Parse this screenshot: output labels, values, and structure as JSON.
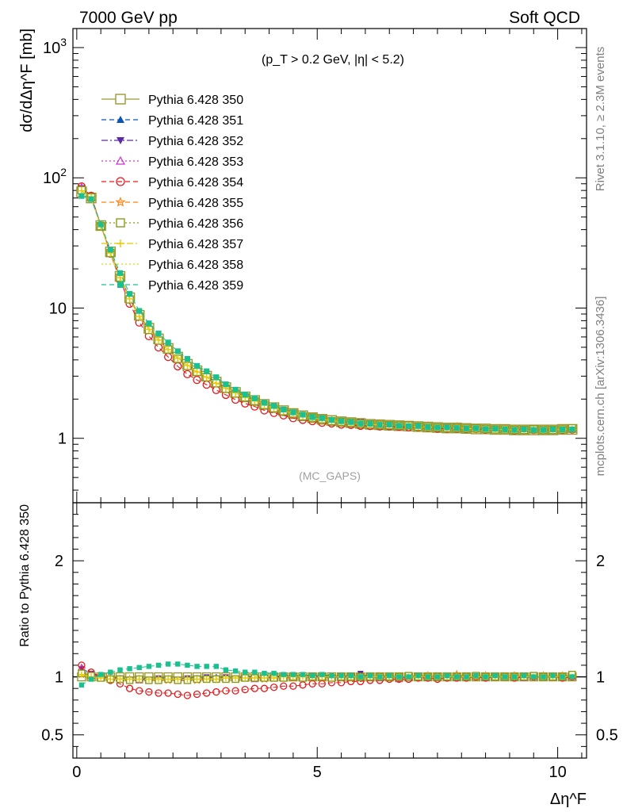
{
  "header": {
    "left_title": "7000 GeV pp",
    "right_title": "Soft QCD",
    "cut_label": "(p_T > 0.2 GeV, |η| < 5.2)",
    "watermark": "(MC_GAPS)",
    "side_note_top": "Rivet 3.1.10, ≥ 2.3M events",
    "side_note_bottom": "mcplots.cern.ch [arXiv:1306.3436]"
  },
  "chart_data": [
    {
      "type": "scatter",
      "name": "main",
      "ylabel": "dσ/dΔη^F [mb]",
      "yscale": "log",
      "xlim": [
        -0.08,
        10.6
      ],
      "ylim": [
        0.32,
        1400
      ],
      "y_ticks": [
        1,
        10,
        100,
        1000
      ],
      "y_tick_labels": [
        "1",
        "10",
        "10^2",
        "10^3"
      ],
      "x": [
        0.1,
        0.3,
        0.5,
        0.7,
        0.9,
        1.1,
        1.3,
        1.5,
        1.7,
        1.9,
        2.1,
        2.3,
        2.5,
        2.7,
        2.9,
        3.1,
        3.3,
        3.5,
        3.7,
        3.9,
        4.1,
        4.3,
        4.5,
        4.7,
        4.9,
        5.1,
        5.3,
        5.5,
        5.7,
        5.9,
        6.1,
        6.3,
        6.5,
        6.7,
        6.9,
        7.1,
        7.3,
        7.5,
        7.7,
        7.9,
        8.1,
        8.3,
        8.5,
        8.7,
        8.9,
        9.1,
        9.3,
        9.5,
        9.7,
        9.9,
        10.1,
        10.3
      ],
      "reference_values": [
        78,
        70,
        43,
        27,
        17.5,
        12,
        8.8,
        7.0,
        5.8,
        4.9,
        4.2,
        3.7,
        3.3,
        3.0,
        2.7,
        2.45,
        2.25,
        2.08,
        1.95,
        1.82,
        1.72,
        1.63,
        1.55,
        1.49,
        1.44,
        1.4,
        1.37,
        1.34,
        1.32,
        1.3,
        1.28,
        1.27,
        1.26,
        1.25,
        1.24,
        1.23,
        1.22,
        1.21,
        1.2,
        1.2,
        1.19,
        1.18,
        1.18,
        1.17,
        1.17,
        1.16,
        1.16,
        1.16,
        1.16,
        1.16,
        1.17,
        1.17
      ],
      "legend_position": "top-left",
      "series": [
        {
          "name": "Pythia 6.428 350",
          "color": "#999933",
          "marker": "square-open",
          "line": "solid"
        },
        {
          "name": "Pythia 6.428 351",
          "color": "#0b55b5",
          "marker": "triangle-up",
          "line": "dashed"
        },
        {
          "name": "Pythia 6.428 352",
          "color": "#5b2aa6",
          "marker": "triangle-down",
          "line": "dashdot"
        },
        {
          "name": "Pythia 6.428 353",
          "color": "#cc33cc",
          "marker": "triangle-up-open",
          "line": "dotted"
        },
        {
          "name": "Pythia 6.428 354",
          "color": "#e31a1c",
          "marker": "circle-open",
          "line": "dashed"
        },
        {
          "name": "Pythia 6.428 355",
          "color": "#ff7f0e",
          "marker": "star-open",
          "line": "dashed"
        },
        {
          "name": "Pythia 6.428 356",
          "color": "#8c9a17",
          "marker": "square-open",
          "line": "dotted"
        },
        {
          "name": "Pythia 6.428 357",
          "color": "#e8c800",
          "marker": "plus",
          "line": "dashdot"
        },
        {
          "name": "Pythia 6.428 358",
          "color": "#d6d61a",
          "marker": "none",
          "line": "dotted"
        },
        {
          "name": "Pythia 6.428 359",
          "color": "#1cbf8f",
          "marker": "square",
          "line": "dashed"
        }
      ]
    },
    {
      "type": "scatter",
      "name": "ratio",
      "xlabel": "Δη^F",
      "ylabel": "Ratio to Pythia 6.428 350",
      "xlim": [
        -0.08,
        10.6
      ],
      "ylim": [
        0.3,
        2.5
      ],
      "x_ticks": [
        0,
        5,
        10
      ],
      "y_ticks": [
        0.5,
        1,
        2
      ],
      "series": [
        {
          "name": "Pythia 6.428 350",
          "values": [
            1,
            1,
            1,
            1,
            1,
            1,
            1,
            1,
            1,
            1,
            1,
            1,
            1,
            1,
            1,
            1,
            1,
            1,
            1,
            1,
            1,
            1,
            1,
            1,
            1,
            1,
            1,
            1,
            1,
            1,
            1,
            1,
            1,
            1,
            1,
            1,
            1,
            1,
            1,
            1,
            1,
            1,
            1,
            1,
            1,
            1,
            1,
            1,
            1,
            1,
            1,
            1
          ]
        },
        {
          "name": "Pythia 6.428 351",
          "values": [
            1.05,
            1.02,
            1.0,
            0.99,
            0.99,
            0.98,
            0.99,
            0.98,
            0.99,
            0.99,
            0.98,
            0.99,
            0.99,
            0.99,
            1.0,
            0.99,
            0.99,
            1.0,
            1.0,
            0.99,
            1.0,
            1.0,
            1.01,
            1.0,
            1.0,
            1.0,
            1.01,
            1.0,
            1.0,
            1.02,
            1.0,
            1.0,
            1.01,
            1.0,
            1.0,
            1.01,
            1.0,
            1.0,
            0.99,
            1.01,
            1.0,
            1.0,
            1.01,
            1.0,
            1.0,
            1.01,
            1.0,
            1.0,
            1.0,
            1.01,
            1.0,
            1.0
          ]
        },
        {
          "name": "Pythia 6.428 352",
          "values": [
            1.07,
            1.03,
            1.0,
            0.99,
            0.99,
            0.98,
            0.98,
            0.98,
            0.99,
            0.98,
            0.98,
            0.99,
            0.99,
            1.0,
            0.99,
            1.0,
            0.99,
            1.0,
            1.0,
            0.99,
            1.0,
            1.01,
            1.0,
            1.0,
            1.01,
            1.0,
            1.0,
            1.0,
            1.01,
            1.03,
            1.0,
            1.0,
            1.0,
            0.99,
            1.0,
            1.01,
            1.0,
            1.01,
            1.0,
            1.0,
            1.01,
            0.99,
            1.0,
            1.0,
            1.0,
            1.0,
            1.01,
            1.0,
            1.0,
            1.0,
            1.0,
            1.0
          ]
        },
        {
          "name": "Pythia 6.428 353",
          "values": [
            1.08,
            1.02,
            1.0,
            0.98,
            0.98,
            0.98,
            0.97,
            0.97,
            0.98,
            0.98,
            0.97,
            0.97,
            0.98,
            0.98,
            0.98,
            0.99,
            0.98,
            0.99,
            0.98,
            0.99,
            0.99,
            0.99,
            1.0,
            0.99,
            1.0,
            1.0,
            0.99,
            1.0,
            1.0,
            1.0,
            1.0,
            0.99,
            1.0,
            0.98,
            1.0,
            1.0,
            0.99,
            1.0,
            1.0,
            0.99,
            1.0,
            1.0,
            0.99,
            1.0,
            1.0,
            1.0,
            0.99,
            1.0,
            1.0,
            1.0,
            1.0,
            1.0
          ]
        },
        {
          "name": "Pythia 6.428 354",
          "values": [
            1.1,
            1.04,
            1.0,
            0.97,
            0.94,
            0.9,
            0.88,
            0.87,
            0.86,
            0.86,
            0.85,
            0.84,
            0.85,
            0.86,
            0.87,
            0.88,
            0.88,
            0.89,
            0.9,
            0.9,
            0.91,
            0.92,
            0.92,
            0.93,
            0.94,
            0.94,
            0.95,
            0.95,
            0.96,
            0.96,
            0.97,
            0.97,
            0.98,
            0.98,
            0.98,
            0.99,
            0.99,
            0.98,
            0.99,
            0.99,
            0.99,
            1.0,
            0.99,
            1.0,
            1.0,
            0.99,
            1.0,
            1.0,
            1.0,
            1.0,
            0.99,
            1.0
          ]
        },
        {
          "name": "Pythia 6.428 355",
          "values": [
            1.02,
            1.0,
            0.99,
            0.99,
            0.98,
            0.98,
            0.98,
            0.97,
            0.98,
            0.97,
            0.97,
            0.98,
            0.97,
            0.98,
            0.98,
            0.98,
            0.98,
            0.99,
            0.99,
            0.98,
            0.99,
            0.99,
            0.99,
            1.0,
            0.99,
            0.99,
            1.0,
            1.0,
            0.99,
            1.0,
            1.0,
            1.0,
            1.0,
            0.99,
            1.0,
            1.0,
            1.01,
            1.0,
            1.0,
            1.02,
            1.0,
            1.0,
            1.01,
            1.0,
            1.0,
            1.01,
            1.0,
            1.0,
            1.01,
            1.0,
            1.01,
            1.0
          ]
        },
        {
          "name": "Pythia 6.428 356",
          "values": [
            1.03,
            1.01,
            0.99,
            0.98,
            0.98,
            0.97,
            0.98,
            0.97,
            0.97,
            0.98,
            0.97,
            0.97,
            0.98,
            0.98,
            0.98,
            0.98,
            0.98,
            0.99,
            0.99,
            0.99,
            0.99,
            0.99,
            1.0,
            0.99,
            1.0,
            1.0,
            0.99,
            1.0,
            1.0,
            1.0,
            1.0,
            1.0,
            1.0,
            1.0,
            1.01,
            1.0,
            1.0,
            1.0,
            1.0,
            1.0,
            1.0,
            1.01,
            1.0,
            1.0,
            1.0,
            1.0,
            1.0,
            1.01,
            1.0,
            1.0,
            1.0,
            1.02
          ]
        },
        {
          "name": "Pythia 6.428 357",
          "values": [
            1.02,
            1.0,
            0.99,
            0.98,
            0.98,
            0.98,
            0.98,
            0.98,
            0.98,
            0.98,
            0.98,
            0.98,
            0.98,
            0.98,
            0.98,
            0.99,
            0.99,
            0.99,
            0.99,
            0.99,
            0.99,
            1.0,
            1.0,
            1.0,
            1.0,
            1.0,
            1.0,
            1.0,
            1.0,
            1.0,
            1.0,
            1.0,
            1.0,
            1.0,
            1.0,
            1.0,
            1.0,
            1.0,
            1.0,
            1.0,
            1.0,
            1.0,
            1.0,
            1.0,
            1.0,
            1.0,
            1.0,
            1.0,
            1.0,
            1.0,
            1.0,
            1.0
          ]
        },
        {
          "name": "Pythia 6.428 358",
          "values": [
            1.01,
            1.0,
            0.99,
            0.99,
            0.99,
            0.98,
            0.98,
            0.98,
            0.99,
            0.98,
            0.99,
            0.98,
            0.99,
            0.99,
            0.99,
            0.99,
            0.99,
            0.99,
            1.0,
            1.0,
            1.0,
            1.0,
            1.0,
            1.0,
            1.0,
            1.0,
            1.0,
            1.0,
            1.0,
            1.0,
            1.0,
            1.0,
            1.0,
            1.0,
            1.0,
            1.0,
            1.0,
            1.0,
            1.0,
            1.0,
            1.0,
            1.0,
            1.0,
            1.0,
            1.0,
            1.0,
            1.0,
            1.0,
            1.0,
            1.0,
            1.0,
            1.0
          ]
        },
        {
          "name": "Pythia 6.428 359",
          "values": [
            0.93,
            0.98,
            1.02,
            1.04,
            1.06,
            1.07,
            1.08,
            1.09,
            1.1,
            1.11,
            1.11,
            1.1,
            1.09,
            1.09,
            1.09,
            1.06,
            1.05,
            1.04,
            1.04,
            1.03,
            1.03,
            1.02,
            1.02,
            1.02,
            1.01,
            1.02,
            1.01,
            1.01,
            1.01,
            1.0,
            1.01,
            1.0,
            1.01,
            1.0,
            1.0,
            1.01,
            1.0,
            1.0,
            1.01,
            1.0,
            1.0,
            1.01,
            1.0,
            1.01,
            1.0,
            1.0,
            1.01,
            1.0,
            1.0,
            1.01,
            1.0,
            1.0
          ]
        }
      ]
    }
  ]
}
